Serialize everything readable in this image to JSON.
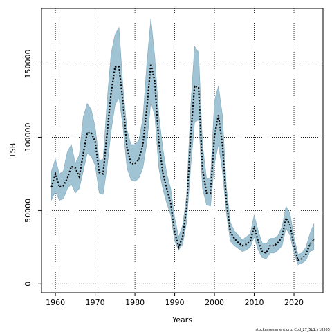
{
  "chart_data": {
    "type": "area",
    "xlabel": "Years",
    "ylabel": "TSB",
    "xlim": [
      1956.5,
      2027.3
    ],
    "ylim": [
      -6000,
      188000
    ],
    "x_ticks": [
      1960,
      1970,
      1980,
      1990,
      2000,
      2010,
      2020
    ],
    "y_ticks": [
      0,
      50000,
      100000,
      150000
    ],
    "y_tick_labels": [
      "0",
      "50000",
      "100000",
      "150000"
    ],
    "grid": true,
    "source_text": "stockassessment.org, Cod_27_5b1, r18555",
    "colors": {
      "band": "#a0c4d4",
      "band_edge": "#7fa8ba",
      "line": "#000000",
      "grid": "#000000"
    },
    "x": [
      1959,
      1960,
      1961,
      1962,
      1963,
      1964,
      1965,
      1966,
      1967,
      1968,
      1969,
      1970,
      1971,
      1972,
      1973,
      1974,
      1975,
      1976,
      1977,
      1978,
      1979,
      1980,
      1981,
      1982,
      1983,
      1984,
      1985,
      1986,
      1987,
      1988,
      1989,
      1990,
      1991,
      1992,
      1993,
      1994,
      1995,
      1996,
      1997,
      1998,
      1999,
      2000,
      2001,
      2002,
      2003,
      2004,
      2005,
      2006,
      2007,
      2008,
      2009,
      2010,
      2011,
      2012,
      2013,
      2014,
      2015,
      2016,
      2017,
      2018,
      2019,
      2020,
      2021,
      2022,
      2023,
      2024,
      2025
    ],
    "series": [
      {
        "role": "estimate",
        "values": [
          66000,
          75000,
          66000,
          67000,
          72000,
          80000,
          79000,
          73000,
          89000,
          103000,
          103000,
          97000,
          76000,
          75000,
          103000,
          130000,
          148000,
          148000,
          124000,
          93000,
          82000,
          82000,
          85000,
          95000,
          120000,
          150000,
          138000,
          97000,
          76000,
          65000,
          55000,
          35000,
          25000,
          32000,
          52000,
          100000,
          135000,
          134000,
          78000,
          62000,
          62000,
          101000,
          115000,
          95000,
          56000,
          35000,
          31000,
          28000,
          26000,
          27000,
          29000,
          39000,
          29000,
          22000,
          21000,
          26000,
          26000,
          28000,
          32000,
          45000,
          40000,
          26000,
          16000,
          17000,
          20000,
          27000,
          30000
        ]
      },
      {
        "role": "upper",
        "values": [
          77000,
          85000,
          75000,
          77000,
          90000,
          95000,
          82000,
          88000,
          114000,
          123000,
          119000,
          107000,
          84000,
          85000,
          125000,
          157000,
          170000,
          175000,
          134000,
          105000,
          95000,
          95000,
          98000,
          113000,
          150000,
          181000,
          155000,
          115000,
          93000,
          75000,
          65000,
          45000,
          32000,
          40000,
          60000,
          120000,
          162000,
          158000,
          95000,
          72000,
          72000,
          125000,
          135000,
          115000,
          66000,
          42000,
          36000,
          33000,
          30000,
          32000,
          34000,
          47000,
          36000,
          28000,
          27000,
          31000,
          31000,
          33000,
          39000,
          53000,
          48000,
          32000,
          20000,
          21000,
          25000,
          34000,
          41000
        ]
      },
      {
        "role": "lower",
        "values": [
          57000,
          63000,
          57000,
          58000,
          65000,
          68000,
          62000,
          65000,
          77000,
          89000,
          87000,
          81000,
          62000,
          61000,
          80000,
          104000,
          122000,
          127000,
          107000,
          79000,
          71000,
          70000,
          72000,
          79000,
          96000,
          124000,
          115000,
          79000,
          65000,
          55000,
          47000,
          29000,
          23000,
          27000,
          42000,
          79000,
          110000,
          112000,
          65000,
          54000,
          53000,
          82000,
          95000,
          77000,
          48000,
          29000,
          26000,
          24000,
          22000,
          23000,
          25000,
          32000,
          23000,
          18000,
          17000,
          21000,
          21000,
          23000,
          26000,
          38000,
          33000,
          21000,
          13000,
          14000,
          16000,
          22000,
          23000
        ]
      }
    ]
  }
}
